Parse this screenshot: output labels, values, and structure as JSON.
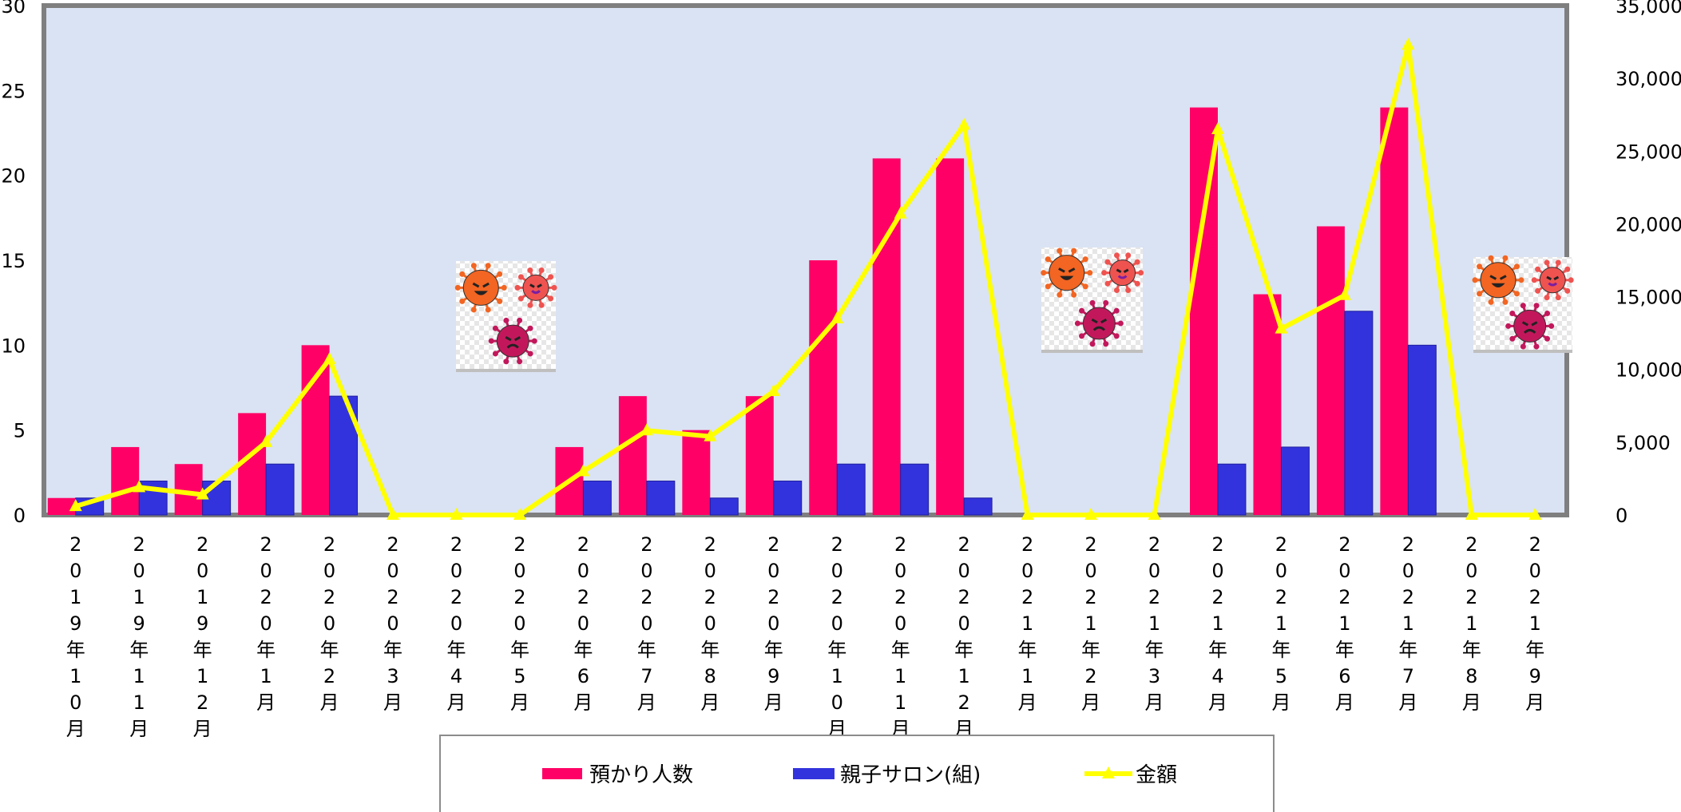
{
  "chart_data": {
    "type": "bar",
    "categories": [
      "2019年10月",
      "2019年11月",
      "2019年12月",
      "2020年1月",
      "2020年2月",
      "2020年3月",
      "2020年4月",
      "2020年5月",
      "2020年6月",
      "2020年7月",
      "2020年8月",
      "2020年9月",
      "2020年10月",
      "2020年11月",
      "2020年12月",
      "2021年1月",
      "2021年2月",
      "2021年3月",
      "2021年4月",
      "2021年5月",
      "2021年6月",
      "2021年7月",
      "2021年8月",
      "2021年9月"
    ],
    "series": [
      {
        "name": "預かり人数",
        "type": "bar",
        "axis": "left",
        "color": "#ff0066",
        "values": [
          1,
          4,
          3,
          6,
          10,
          0,
          0,
          0,
          4,
          7,
          5,
          7,
          15,
          21,
          21,
          0,
          0,
          0,
          24,
          13,
          17,
          24,
          0,
          0
        ]
      },
      {
        "name": "親子サロン(組)",
        "type": "bar",
        "axis": "left",
        "color": "#3333dd",
        "values": [
          1,
          2,
          2,
          3,
          7,
          0,
          0,
          0,
          2,
          2,
          1,
          2,
          3,
          3,
          1,
          0,
          0,
          0,
          3,
          4,
          12,
          10,
          0,
          0
        ]
      },
      {
        "name": "金額",
        "type": "line",
        "axis": "right",
        "color": "#ffff00",
        "values": [
          600,
          1900,
          1400,
          5000,
          10700,
          0,
          0,
          0,
          3000,
          5800,
          5400,
          8500,
          13500,
          20700,
          26800,
          0,
          0,
          0,
          26500,
          12800,
          15100,
          32300,
          0,
          0
        ]
      }
    ],
    "left_axis": {
      "min": 0,
      "max": 30,
      "ticks": [
        "0",
        "5",
        "10",
        "15",
        "20",
        "25",
        "30"
      ]
    },
    "right_axis": {
      "min": 0,
      "max": 35000,
      "ticks": [
        "0",
        "5,000",
        "10,000",
        "15,000",
        "20,000",
        "25,000",
        "30,000",
        "35,000"
      ]
    },
    "plot_background": "#dae3f3",
    "grid": false,
    "legend_position": "bottom",
    "decorations": [
      "virus-illustration",
      "virus-illustration",
      "virus-illustration"
    ]
  }
}
